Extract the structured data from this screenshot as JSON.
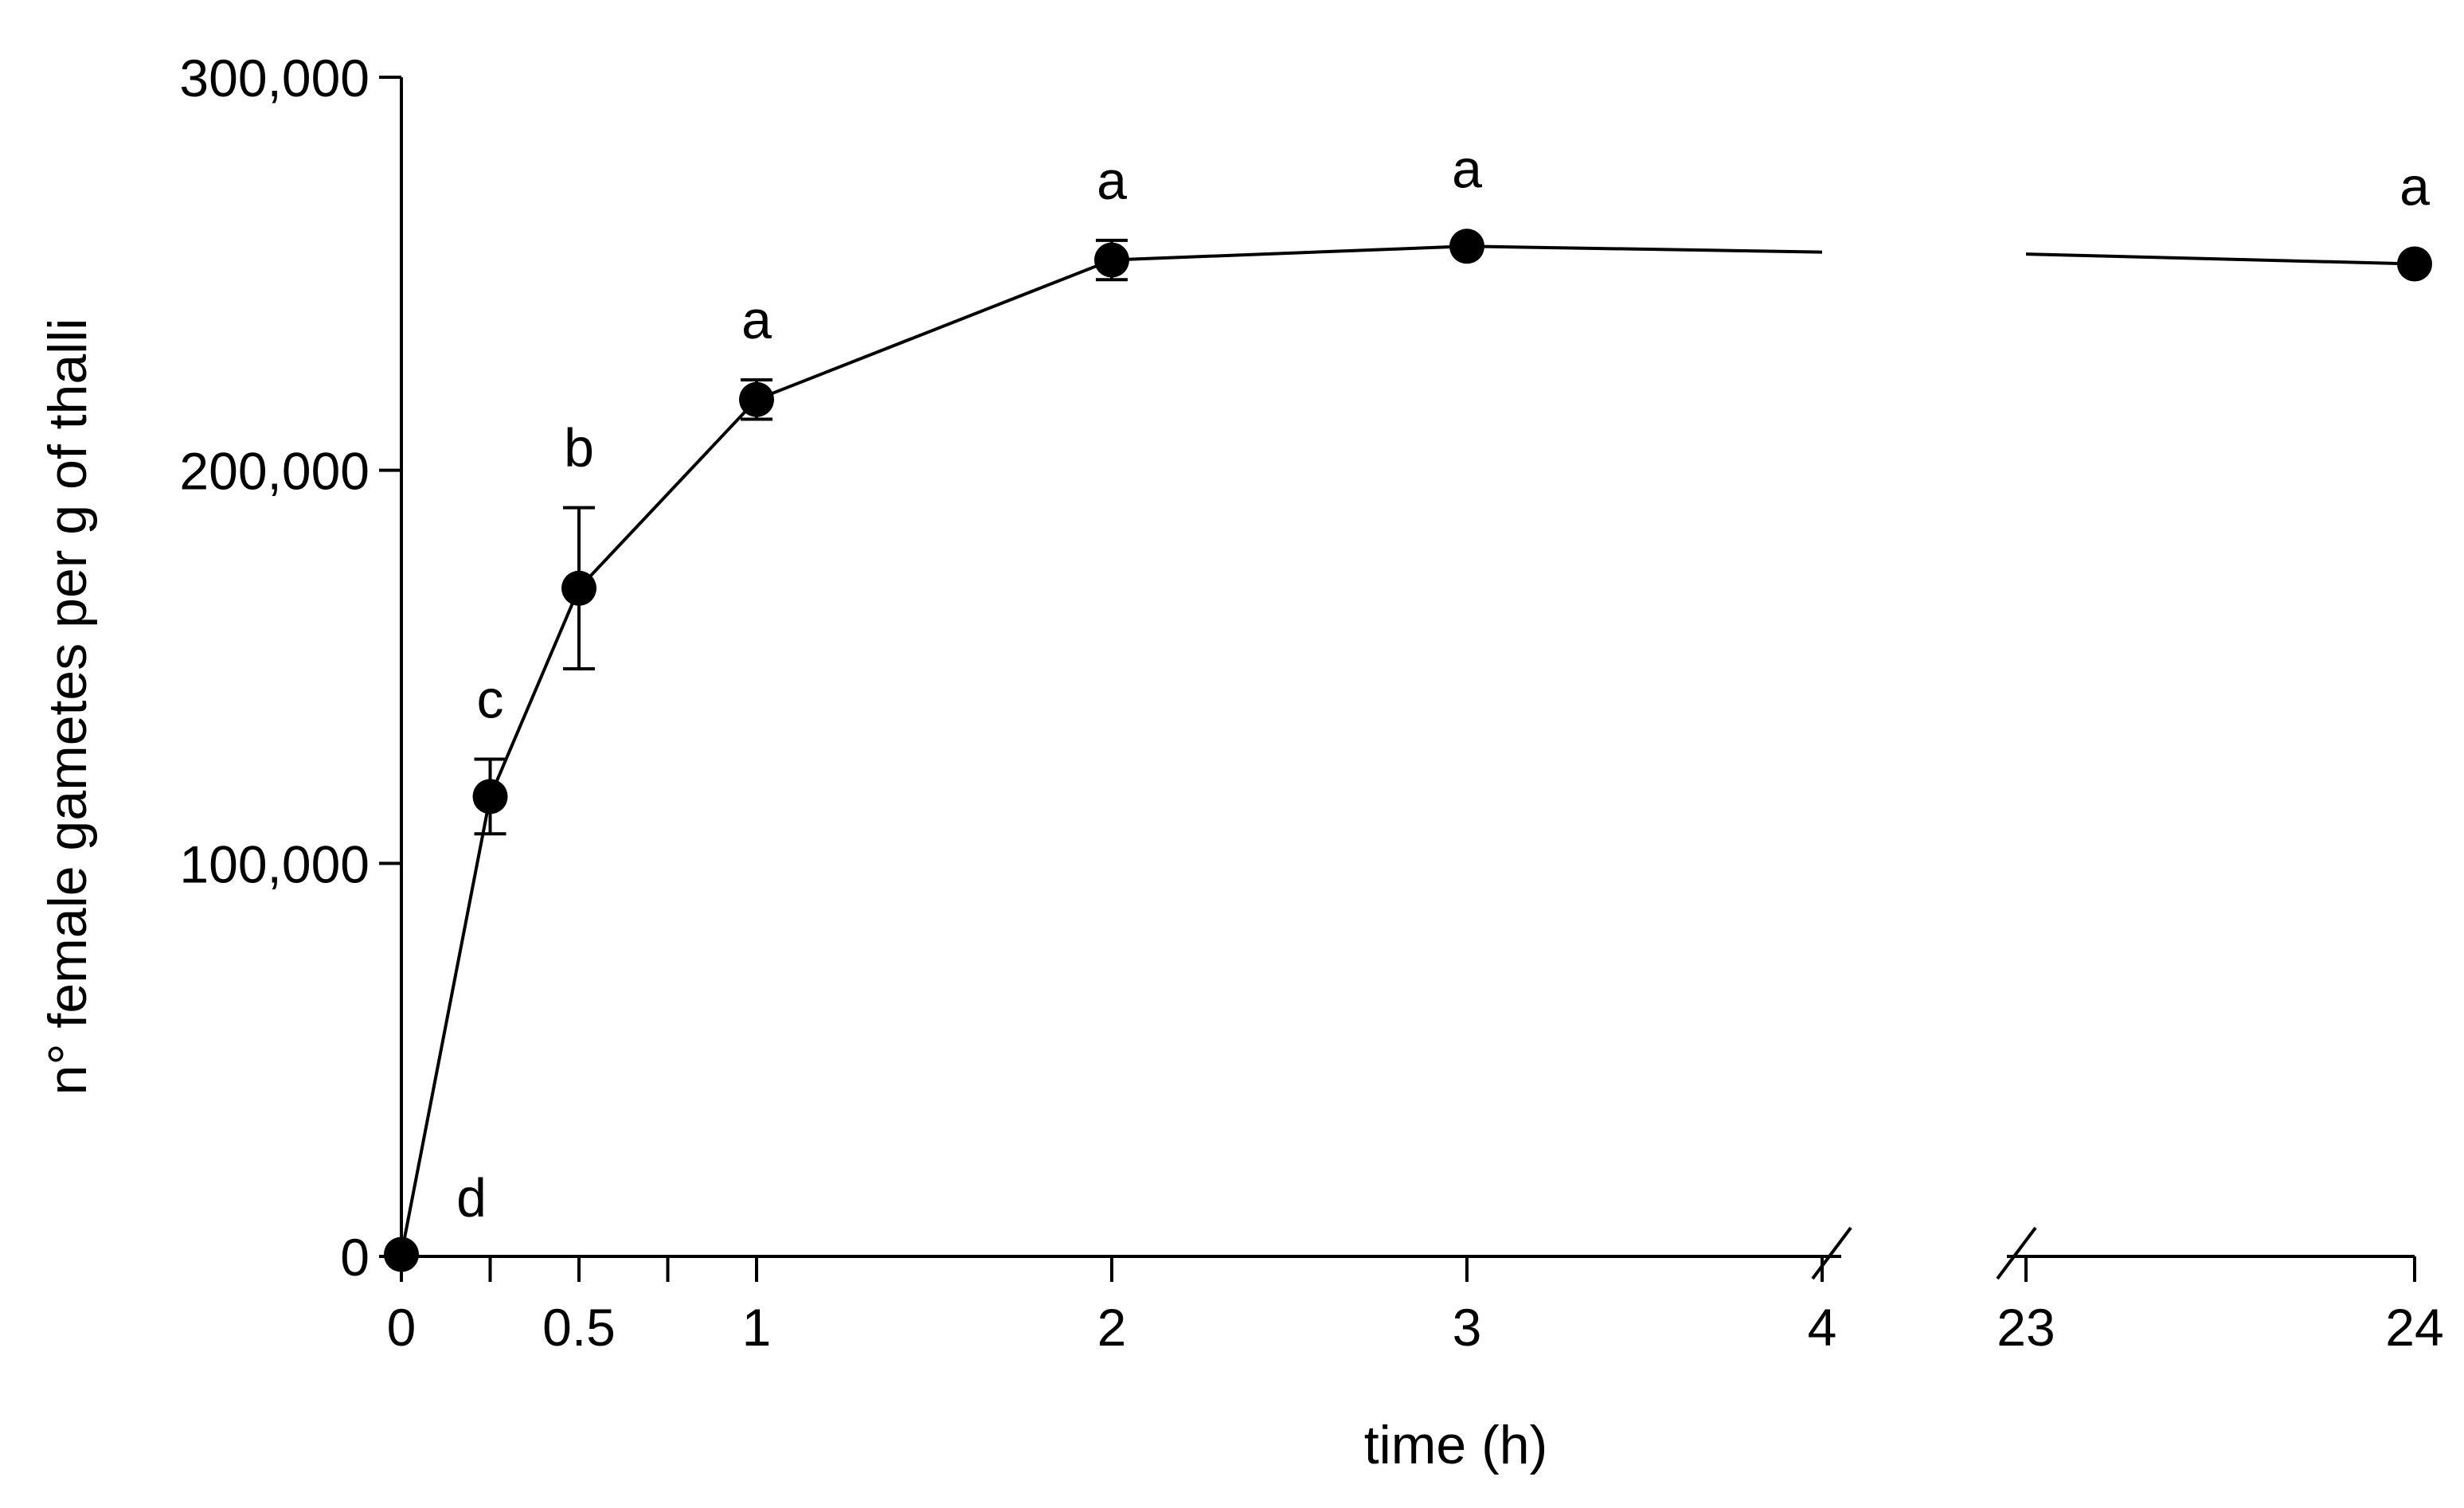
{
  "chart_data": {
    "type": "line",
    "title": "",
    "xlabel": "time (h)",
    "ylabel": "n° female gametes per g of thalli",
    "ylim": [
      0,
      300000
    ],
    "yticks": [
      {
        "value": 0,
        "label": "0"
      },
      {
        "value": 100000,
        "label": "100,000"
      },
      {
        "value": 200000,
        "label": "200,000"
      },
      {
        "value": 300000,
        "label": "300,000"
      }
    ],
    "x_segments": [
      [
        0,
        4
      ],
      [
        23,
        24
      ]
    ],
    "x_break": "between 4 and 23",
    "xticks": [
      {
        "value": 0,
        "label": "0"
      },
      {
        "value": 0.25,
        "label": ""
      },
      {
        "value": 0.5,
        "label": "0.5"
      },
      {
        "value": 0.75,
        "label": ""
      },
      {
        "value": 1,
        "label": "1"
      },
      {
        "value": 2,
        "label": "2"
      },
      {
        "value": 3,
        "label": "3"
      },
      {
        "value": 4,
        "label": "4"
      },
      {
        "value": 23,
        "label": "23"
      },
      {
        "value": 24,
        "label": "24"
      }
    ],
    "series": [
      {
        "name": "female gametes",
        "points": [
          {
            "x": 0,
            "y": 500,
            "err": 0,
            "label": "d"
          },
          {
            "x": 0.25,
            "y": 117000,
            "err": 9500,
            "label": "c"
          },
          {
            "x": 0.5,
            "y": 170000,
            "err": 20500,
            "label": "b"
          },
          {
            "x": 1,
            "y": 218000,
            "err": 5000,
            "label": "a"
          },
          {
            "x": 2,
            "y": 253500,
            "err": 5000,
            "label": "a"
          },
          {
            "x": 3,
            "y": 257000,
            "err": 0,
            "label": "a"
          },
          {
            "x": 24,
            "y": 252500,
            "err": 0,
            "label": "a"
          }
        ],
        "line_through": [
          {
            "x": 4,
            "y": 255500
          },
          {
            "x": 23,
            "y": 255000
          }
        ]
      }
    ],
    "grid": false,
    "legend": "none"
  }
}
